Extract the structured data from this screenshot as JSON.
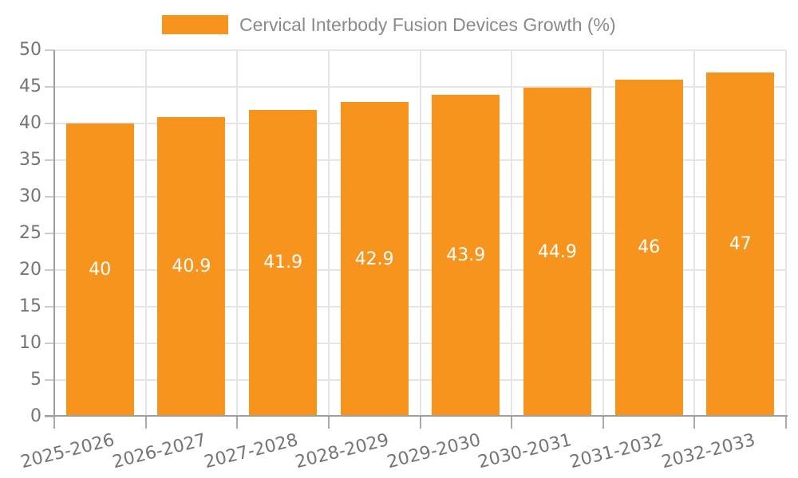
{
  "legend": {
    "label": "Cervical Interbody Fusion Devices Growth (%)"
  },
  "colors": {
    "bar": "#F7941E",
    "grid": "#E5E5E5",
    "axis": "#9E9E9E",
    "tick_label": "#757575",
    "legend_label": "#8A8A8A",
    "value_label": "#FFFFFF",
    "background": "#FFFFFF"
  },
  "chart_data": {
    "type": "bar",
    "title": "Cervical Interbody Fusion Devices Growth (%)",
    "categories": [
      "2025-2026",
      "2026-2027",
      "2027-2028",
      "2028-2029",
      "2029-2030",
      "2030-2031",
      "2031-2032",
      "2032-2033"
    ],
    "values": [
      40,
      40.9,
      41.9,
      42.9,
      43.9,
      44.9,
      46,
      47
    ],
    "value_labels": [
      "40",
      "40.9",
      "41.9",
      "42.9",
      "43.9",
      "44.9",
      "46",
      "47"
    ],
    "xlabel": "",
    "ylabel": "",
    "ylim": [
      0,
      50
    ],
    "ytick_interval": 5,
    "yticks": [
      0,
      5,
      10,
      15,
      20,
      25,
      30,
      35,
      40,
      45,
      50
    ],
    "grid": true,
    "legend_position": "top-center",
    "bar_color": "#F7941E",
    "value_label_position": "inside-middle",
    "xtick_rotation_deg": -14
  }
}
